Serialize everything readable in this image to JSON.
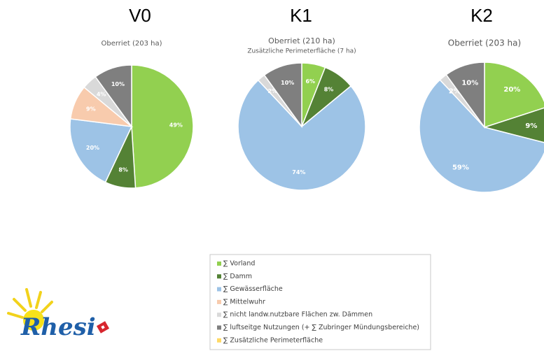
{
  "chart_data": [
    {
      "type": "pie",
      "title": "V0",
      "subtitle": "Oberriet (203 ha)",
      "values": [
        49,
        8,
        20,
        9,
        4,
        10,
        null
      ],
      "value_labels": [
        "49%",
        "8%",
        "20%",
        "9%",
        "4%",
        "10%",
        null
      ]
    },
    {
      "type": "pie",
      "title": "K1",
      "subtitle": "Oberriet (210 ha)",
      "subtitle2": "Zusätzliche Perimeterfläche (7 ha)",
      "values": [
        6,
        8,
        74,
        null,
        2,
        10,
        null
      ],
      "value_labels": [
        "6%",
        "8%",
        "74%",
        null,
        "2%",
        "10%",
        null
      ]
    },
    {
      "type": "pie",
      "title": "K2",
      "subtitle": "Oberriet (203 ha)",
      "values": [
        20,
        9,
        59,
        null,
        2,
        10,
        null
      ],
      "value_labels": [
        "20%",
        "9%",
        "59%",
        null,
        "2%",
        "10%",
        null
      ]
    }
  ],
  "legend": {
    "categories": [
      "∑ Vorland",
      "∑ Damm",
      "∑ Gewässerfläche",
      "∑ Mittelwuhr",
      "∑ nicht landw.nutzbare Flächen zw. Dämmen",
      "∑ luftseitge Nutzungen (+ ∑ Zubringer Mündungsbereiche)",
      "∑ Zusätzliche Perimeterfläche"
    ],
    "colors": [
      "#92d050",
      "#548235",
      "#9dc3e6",
      "#f8cbad",
      "#d9d9d9",
      "#7f7f7f",
      "#ffd966"
    ]
  },
  "logo": {
    "text": "Rhesi"
  }
}
